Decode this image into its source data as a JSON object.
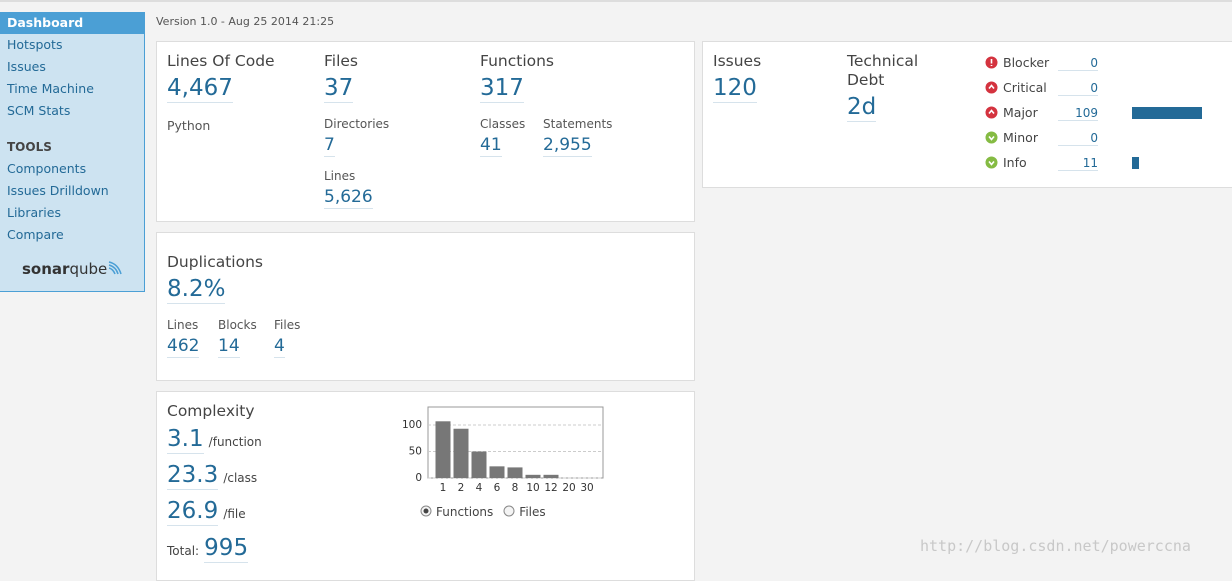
{
  "sidebar": {
    "nav": [
      "Dashboard",
      "Hotspots",
      "Issues",
      "Time Machine",
      "SCM Stats"
    ],
    "active": 0,
    "tools_heading": "TOOLS",
    "tools": [
      "Components",
      "Issues Drilldown",
      "Libraries",
      "Compare"
    ],
    "logo": {
      "sonar": "sonar",
      "qube": "qube"
    }
  },
  "version": "Version 1.0 - Aug 25 2014 21:25",
  "size": {
    "lines_of_code": {
      "label": "Lines Of Code",
      "value": "4,467"
    },
    "language": "Python",
    "files": {
      "label": "Files",
      "value": "37"
    },
    "directories": {
      "label": "Directories",
      "value": "7"
    },
    "lines": {
      "label": "Lines",
      "value": "5,626"
    },
    "functions": {
      "label": "Functions",
      "value": "317"
    },
    "classes": {
      "label": "Classes",
      "value": "41"
    },
    "statements": {
      "label": "Statements",
      "value": "2,955"
    }
  },
  "issues": {
    "label": "Issues",
    "value": "120",
    "debt_label": "Technical Debt",
    "debt": "2d",
    "bar_color": "#236a97",
    "severities": [
      {
        "name": "Blocker",
        "count": 0,
        "color": "#d4333f"
      },
      {
        "name": "Critical",
        "count": 0,
        "color": "#d4333f"
      },
      {
        "name": "Major",
        "count": 109,
        "color": "#d4333f"
      },
      {
        "name": "Minor",
        "count": 0,
        "color": "#85bb43"
      },
      {
        "name": "Info",
        "count": 11,
        "color": "#85bb43"
      }
    ]
  },
  "duplications": {
    "title": "Duplications",
    "density": "8.2%",
    "lines": {
      "label": "Lines",
      "value": "462"
    },
    "blocks": {
      "label": "Blocks",
      "value": "14"
    },
    "files": {
      "label": "Files",
      "value": "4"
    }
  },
  "complexity": {
    "title": "Complexity",
    "per_function": {
      "value": "3.1",
      "unit": "/function"
    },
    "per_class": {
      "value": "23.3",
      "unit": "/class"
    },
    "per_file": {
      "value": "26.9",
      "unit": "/file"
    },
    "total_label": "Total:",
    "total": "995",
    "options": [
      "Functions",
      "Files"
    ],
    "selected_option": 0,
    "chart_data": {
      "type": "bar",
      "categories": [
        "1",
        "2",
        "4",
        "6",
        "8",
        "10",
        "12",
        "20",
        "30"
      ],
      "values": [
        107,
        93,
        50,
        22,
        20,
        6,
        6,
        0,
        0
      ],
      "color": "#777777",
      "ylim": [
        0,
        134
      ],
      "yticks": [
        0,
        50,
        100
      ],
      "grid": true
    }
  },
  "watermark": "http://blog.csdn.net/powerccna"
}
